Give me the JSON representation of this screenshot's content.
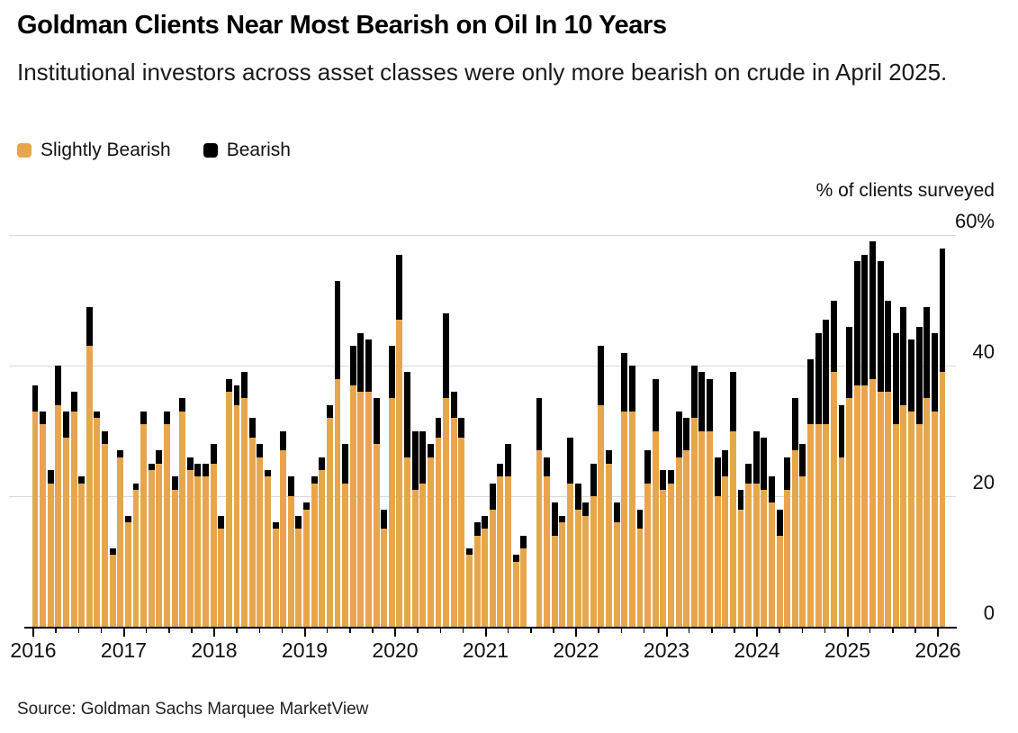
{
  "title": "Goldman Clients Near Most Bearish on Oil In 10 Years",
  "subtitle": "Institutional investors across asset classes were only more bearish on crude in April 2025.",
  "source": "Source: Goldman Sachs Marquee MarketView",
  "colors": {
    "slightly_bearish": "#E7A64C",
    "bearish": "#000000",
    "gridline": "#D8D8D8",
    "axis": "#000000"
  },
  "chart_data": {
    "type": "bar",
    "stacked": true,
    "title": "Goldman Clients Near Most Bearish on Oil In 10 Years",
    "subtitle": "Institutional investors across asset classes were only more bearish on crude in April 2025.",
    "ylabel": "% of clients surveyed",
    "unit": "%",
    "ylim": [
      0,
      60
    ],
    "grid": "horizontal",
    "legend_position": "top-left",
    "yticks": [
      {
        "value": 60,
        "label": "60%"
      },
      {
        "value": 40,
        "label": "40"
      },
      {
        "value": 20,
        "label": "20"
      },
      {
        "value": 0,
        "label": "0"
      }
    ],
    "x_year_ticks": [
      "2016",
      "2017",
      "2018",
      "2019",
      "2020",
      "2021",
      "2022",
      "2023",
      "2024",
      "2025",
      "2026"
    ],
    "series_names": [
      "Slightly Bearish",
      "Bearish"
    ],
    "series_colors": [
      "#E7A64C",
      "#000000"
    ],
    "bars_format": [
      "month",
      "slightly_bearish_pct",
      "bearish_pct"
    ],
    "bars": [
      [
        "2016-01",
        33,
        4
      ],
      [
        "2016-02",
        31,
        2
      ],
      [
        "2016-03",
        22,
        2
      ],
      [
        "2016-04",
        34,
        6
      ],
      [
        "2016-05",
        29,
        4
      ],
      [
        "2016-06",
        33,
        3
      ],
      [
        "2016-07",
        22,
        1
      ],
      [
        "2016-08",
        43,
        6
      ],
      [
        "2016-09",
        32,
        1
      ],
      [
        "2016-10",
        28,
        2
      ],
      [
        "2016-11",
        11,
        1
      ],
      [
        "2016-12",
        26,
        1
      ],
      [
        "2017-01",
        16,
        1
      ],
      [
        "2017-02",
        21,
        1
      ],
      [
        "2017-03",
        31,
        2
      ],
      [
        "2017-04",
        24,
        1
      ],
      [
        "2017-05",
        25,
        2
      ],
      [
        "2017-06",
        31,
        2
      ],
      [
        "2017-08",
        21,
        2
      ],
      [
        "2017-09",
        33,
        2
      ],
      [
        "2017-10",
        24,
        2
      ],
      [
        "2017-11",
        23,
        2
      ],
      [
        "2017-12",
        23,
        2
      ],
      [
        "2018-01",
        25,
        3
      ],
      [
        "2018-02",
        15,
        2
      ],
      [
        "2018-03",
        36,
        2
      ],
      [
        "2018-04",
        34,
        3
      ],
      [
        "2018-05",
        35,
        4
      ],
      [
        "2018-06",
        29,
        3
      ],
      [
        "2018-07",
        26,
        2
      ],
      [
        "2018-08",
        23,
        1
      ],
      [
        "2018-09",
        15,
        1
      ],
      [
        "2018-10",
        27,
        3
      ],
      [
        "2018-12",
        20,
        3
      ],
      [
        "2019-02",
        15,
        2
      ],
      [
        "2019-03",
        18,
        1
      ],
      [
        "2019-04",
        22,
        1
      ],
      [
        "2019-05",
        24,
        2
      ],
      [
        "2019-06",
        32,
        2
      ],
      [
        "2019-07",
        38,
        15
      ],
      [
        "2019-08",
        22,
        6
      ],
      [
        "2019-09",
        37,
        6
      ],
      [
        "2019-10",
        36,
        9
      ],
      [
        "2019-11",
        36,
        8
      ],
      [
        "2019-12",
        28,
        7
      ],
      [
        "2020-01",
        15,
        3
      ],
      [
        "2020-02",
        35,
        8
      ],
      [
        "2020-03",
        47,
        10
      ],
      [
        "2020-04",
        26,
        13
      ],
      [
        "2020-05",
        21,
        9
      ],
      [
        "2020-06",
        22,
        8
      ],
      [
        "2020-07",
        26,
        2
      ],
      [
        "2020-08",
        29,
        3
      ],
      [
        "2020-09",
        35,
        13
      ],
      [
        "2020-10",
        32,
        4
      ],
      [
        "2020-11",
        29,
        3
      ],
      [
        "2020-12",
        11,
        1
      ],
      [
        "2021-01",
        14,
        2
      ],
      [
        "2021-02",
        15,
        2
      ],
      [
        "2021-03",
        18,
        4
      ],
      [
        "2021-04",
        23,
        2
      ],
      [
        "2021-05",
        23,
        5
      ],
      [
        "2021-06",
        10,
        1
      ],
      [
        "2021-07",
        12,
        2
      ],
      [
        "2021-08",
        null,
        null
      ],
      [
        "2021-09",
        27,
        8
      ],
      [
        "2021-10",
        23,
        3
      ],
      [
        "2021-11",
        14,
        5
      ],
      [
        "2021-12",
        16,
        1
      ],
      [
        "2022-01",
        22,
        7
      ],
      [
        "2022-02",
        18,
        4
      ],
      [
        "2022-03",
        17,
        2
      ],
      [
        "2022-04",
        20,
        5
      ],
      [
        "2022-05",
        34,
        9
      ],
      [
        "2022-06",
        25,
        2
      ],
      [
        "2022-07",
        16,
        3
      ],
      [
        "2022-08",
        33,
        9
      ],
      [
        "2022-09",
        33,
        7
      ],
      [
        "2022-10",
        15,
        3
      ],
      [
        "2022-11",
        22,
        5
      ],
      [
        "2022-12",
        30,
        8
      ],
      [
        "2023-01",
        21,
        3
      ],
      [
        "2023-02",
        22,
        2
      ],
      [
        "2023-03",
        26,
        7
      ],
      [
        "2023-04",
        27,
        5
      ],
      [
        "2023-05",
        32,
        8
      ],
      [
        "2023-06",
        30,
        9
      ],
      [
        "2023-07",
        30,
        8
      ],
      [
        "2023-08",
        20,
        6
      ],
      [
        "2023-09",
        23,
        4
      ],
      [
        "2023-10",
        30,
        9
      ],
      [
        "2023-11",
        18,
        3
      ],
      [
        "2023-12",
        22,
        3
      ],
      [
        "2024-01",
        22,
        8
      ],
      [
        "2024-02",
        21,
        8
      ],
      [
        "2024-03",
        19,
        4
      ],
      [
        "2024-04",
        14,
        4
      ],
      [
        "2024-05",
        21,
        5
      ],
      [
        "2024-06",
        27,
        8
      ],
      [
        "2024-07",
        23,
        5
      ],
      [
        "2024-08",
        31,
        10
      ],
      [
        "2024-09",
        31,
        14
      ],
      [
        "2024-10",
        31,
        16
      ],
      [
        "2024-11",
        39,
        11
      ],
      [
        "2024-12",
        26,
        8
      ],
      [
        "2025-01",
        35,
        11
      ],
      [
        "2025-02",
        37,
        19
      ],
      [
        "2025-03",
        37,
        20
      ],
      [
        "2025-04",
        38,
        21
      ],
      [
        "2025-05",
        36,
        20
      ],
      [
        "2025-06",
        36,
        14
      ],
      [
        "2025-07",
        31,
        14
      ],
      [
        "2025-08",
        34,
        15
      ],
      [
        "2025-09",
        33,
        11
      ],
      [
        "2025-10",
        31,
        15
      ],
      [
        "2025-11",
        35,
        14
      ],
      [
        "2025-12",
        33,
        12
      ],
      [
        "2026-01",
        39,
        19
      ]
    ]
  }
}
